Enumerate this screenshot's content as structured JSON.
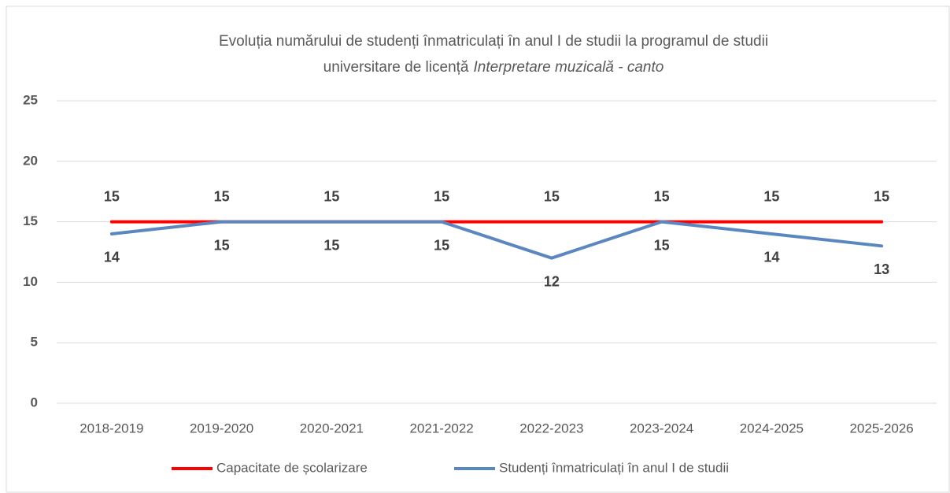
{
  "chart_data": {
    "type": "line",
    "title": [
      "Evoluția numărului de studenți înmatriculați în anul I de studii la programul de studii",
      "universitare de licență",
      "Interpretare muzicală - canto"
    ],
    "categories": [
      "2018-2019",
      "2019-2020",
      "2020-2021",
      "2021-2022",
      "2022-2023",
      "2023-2024",
      "2024-2025",
      "2025-2026"
    ],
    "series": [
      {
        "name": "Capacitate de școlarizare",
        "color": "#ff0000",
        "values": [
          15,
          15,
          15,
          15,
          15,
          15,
          15,
          15
        ]
      },
      {
        "name": "Studenți înmatriculați în anul I de studii",
        "color": "#5b87c1",
        "values": [
          14,
          15,
          15,
          15,
          12,
          15,
          14,
          13
        ]
      }
    ],
    "ylim": [
      0,
      25
    ],
    "yticks": [
      0,
      5,
      10,
      15,
      20,
      25
    ],
    "grid": true,
    "legend": "bottom"
  }
}
